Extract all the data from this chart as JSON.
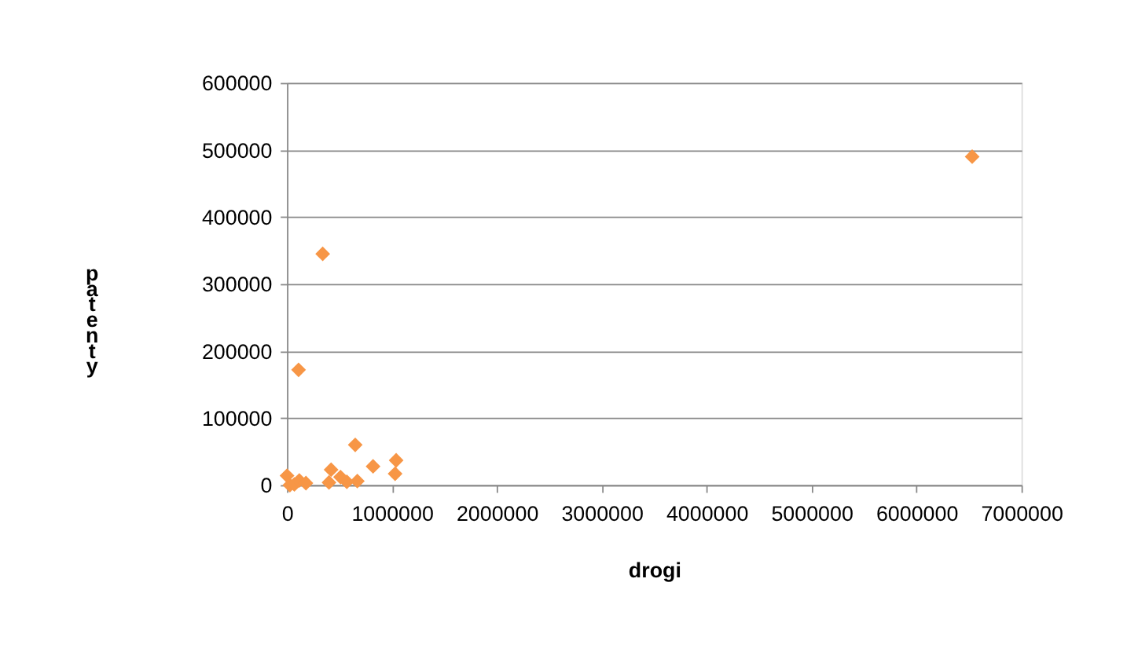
{
  "chart_data": {
    "type": "scatter",
    "xlabel": "drogi",
    "ylabel": "patenty",
    "x": [
      0,
      27000,
      70000,
      117000,
      180000,
      110000,
      340000,
      400000,
      420000,
      510000,
      570000,
      650000,
      670000,
      820000,
      1030000,
      1040000,
      6530000
    ],
    "series": [
      {
        "color": "#f79646",
        "values": [
          14000,
          0,
          1000,
          7000,
          3000,
          172000,
          345000,
          4000,
          23000,
          12000,
          5000,
          60000,
          6000,
          28000,
          17000,
          37000,
          490000
        ]
      }
    ],
    "marker": "diamond",
    "xlim": [
      0,
      7000000
    ],
    "xticks": [
      0,
      1000000,
      2000000,
      3000000,
      4000000,
      5000000,
      6000000,
      7000000
    ],
    "ylim": [
      0,
      600000
    ],
    "yticks": [
      0,
      100000,
      200000,
      300000,
      400000,
      500000,
      600000
    ],
    "grid": "y"
  }
}
